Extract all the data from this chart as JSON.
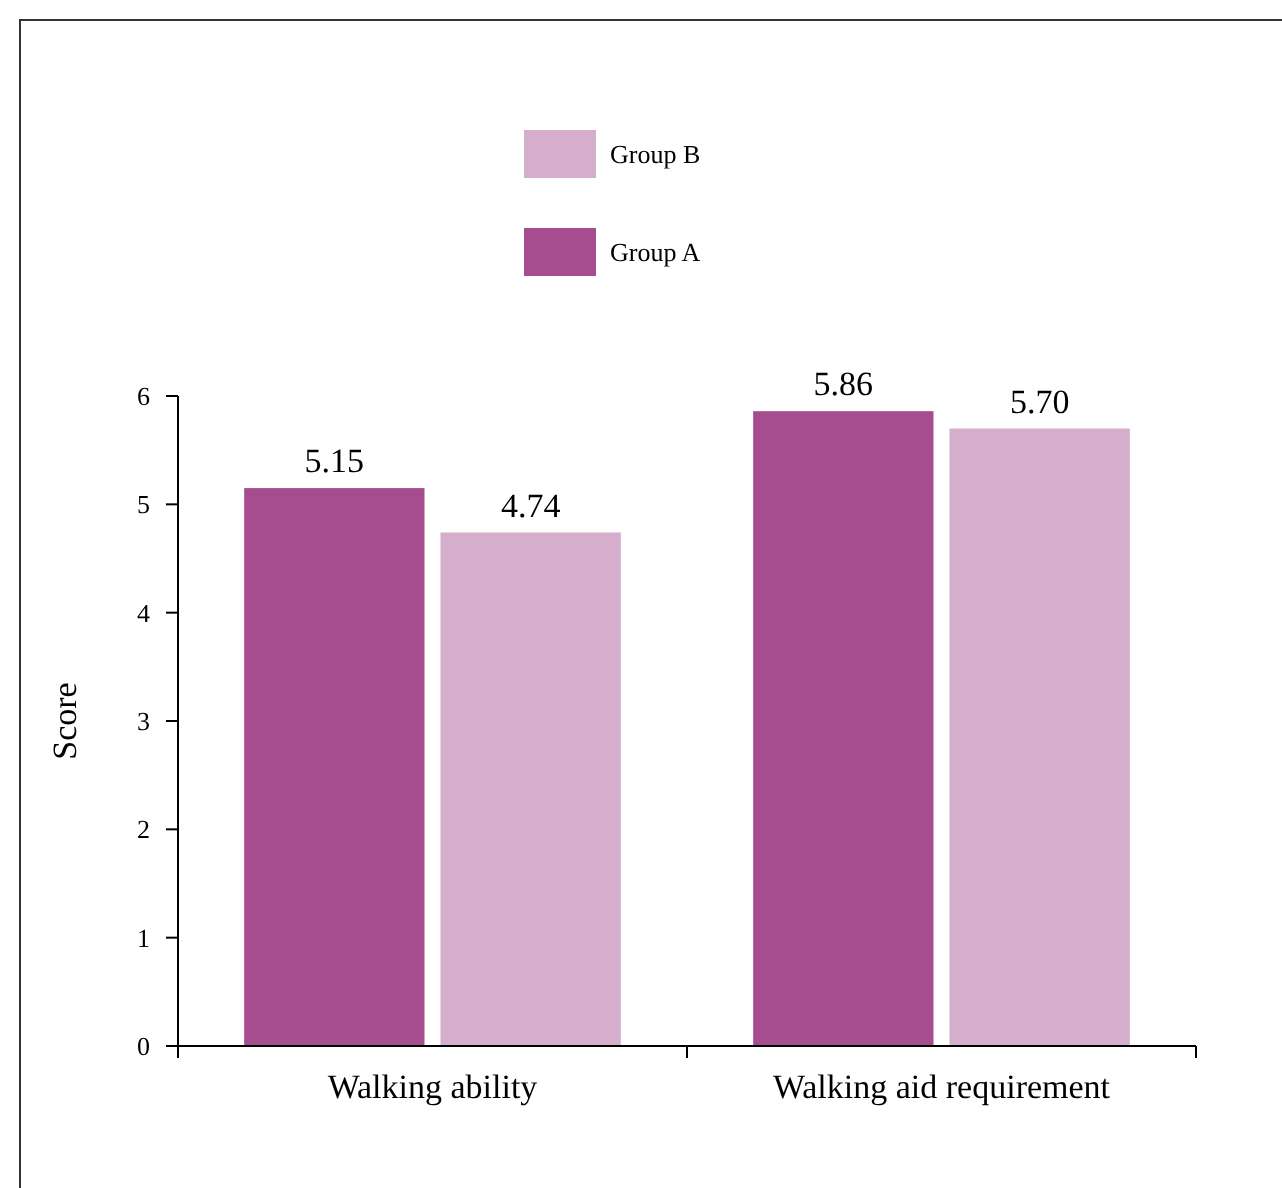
{
  "chart_data": {
    "type": "bar",
    "ylabel": "Score",
    "categories": [
      "Walking ability",
      "Walking aid requirement"
    ],
    "series": [
      {
        "name": "Group A",
        "color": "#a64d8f",
        "values": [
          5.15,
          5.86
        ]
      },
      {
        "name": "Group B",
        "color": "#d5aecb",
        "values": [
          4.74,
          5.7
        ]
      }
    ],
    "value_labels": [
      [
        "5.15",
        "5.86"
      ],
      [
        "4.74",
        "5.70"
      ]
    ],
    "ylim": [
      0,
      6
    ],
    "yticks": [
      0,
      1,
      2,
      3,
      4,
      5,
      6
    ],
    "legend": "top",
    "grid": false
  }
}
